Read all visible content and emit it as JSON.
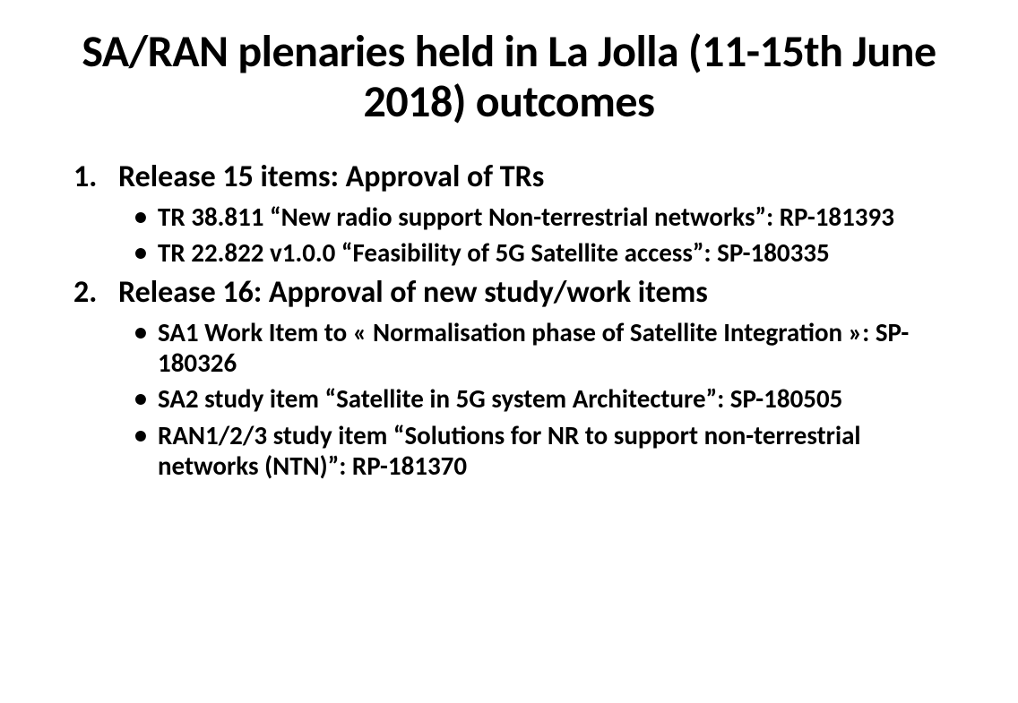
{
  "title": "SA/RAN plenaries held in La Jolla (11-15th June 2018) outcomes",
  "list": {
    "item1": {
      "heading": "Release 15 items: Approval of TRs",
      "bullets": [
        "TR 38.811 “New radio support Non-terrestrial networks”: RP-181393",
        "TR 22.822 v1.0.0 “Feasibility of 5G Satellite access”: SP-180335"
      ]
    },
    "item2": {
      "heading": "Release 16: Approval of new study/work items",
      "bullets": [
        "SA1 Work Item to « Normalisation phase of Satellite Integration »: SP-180326",
        "SA2 study item “Satellite in 5G system Architecture”: SP-180505",
        "RAN1/2/3 study item “Solutions for NR to support non-terrestrial networks (NTN)”: RP-181370"
      ]
    }
  }
}
